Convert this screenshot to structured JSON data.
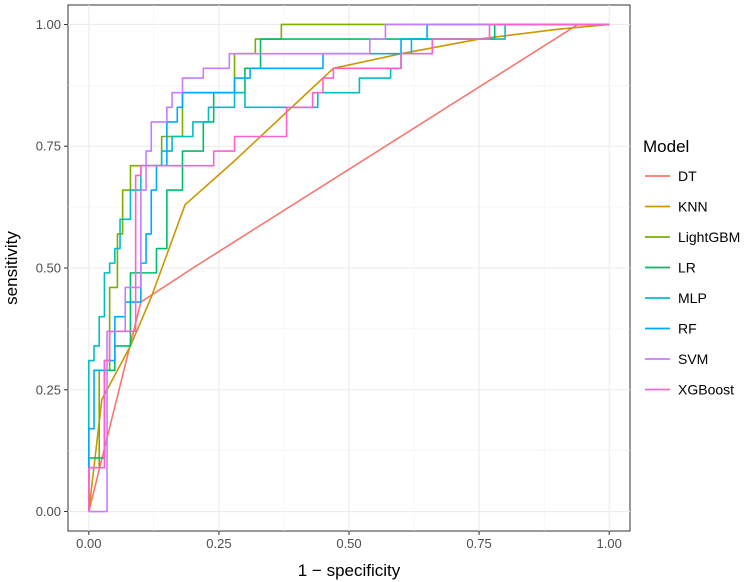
{
  "chart_data": {
    "type": "line",
    "xlabel": "1 − specificity",
    "ylabel": "sensitivity",
    "xlim": [
      -0.04,
      1.04
    ],
    "ylim": [
      -0.04,
      1.04
    ],
    "grid": true,
    "x_ticks": [
      "0.00",
      "0.25",
      "0.50",
      "0.75",
      "1.00"
    ],
    "y_ticks": [
      "0.00",
      "0.25",
      "0.50",
      "0.75",
      "1.00"
    ],
    "legend": {
      "title": "Model",
      "position": "right"
    },
    "series": [
      {
        "name": "DT",
        "color": "#F8766D",
        "points": [
          [
            0,
            0
          ],
          [
            0.1,
            0.43
          ],
          [
            0.2,
            0.5
          ],
          [
            0.94,
            1
          ],
          [
            1,
            1
          ]
        ]
      },
      {
        "name": "KNN",
        "color": "#CD9600",
        "points": [
          [
            0,
            0
          ],
          [
            0.025,
            0.23
          ],
          [
            0.05,
            0.28
          ],
          [
            0.08,
            0.34
          ],
          [
            0.12,
            0.44
          ],
          [
            0.185,
            0.63
          ],
          [
            0.28,
            0.72
          ],
          [
            0.37,
            0.81
          ],
          [
            0.47,
            0.91
          ],
          [
            0.6,
            0.94
          ],
          [
            0.75,
            0.97
          ],
          [
            0.9,
            0.99
          ],
          [
            1,
            1
          ]
        ]
      },
      {
        "name": "LightGBM",
        "color": "#7CAE00",
        "points": [
          [
            0,
            0
          ],
          [
            0,
            0.09
          ],
          [
            0.02,
            0.09
          ],
          [
            0.02,
            0.29
          ],
          [
            0.04,
            0.29
          ],
          [
            0.04,
            0.46
          ],
          [
            0.055,
            0.46
          ],
          [
            0.055,
            0.57
          ],
          [
            0.065,
            0.57
          ],
          [
            0.065,
            0.66
          ],
          [
            0.08,
            0.66
          ],
          [
            0.08,
            0.71
          ],
          [
            0.14,
            0.71
          ],
          [
            0.14,
            0.77
          ],
          [
            0.18,
            0.77
          ],
          [
            0.18,
            0.86
          ],
          [
            0.28,
            0.86
          ],
          [
            0.28,
            0.94
          ],
          [
            0.32,
            0.94
          ],
          [
            0.32,
            0.97
          ],
          [
            0.37,
            0.97
          ],
          [
            0.37,
            1
          ],
          [
            1,
            1
          ]
        ]
      },
      {
        "name": "LR",
        "color": "#00BE67",
        "points": [
          [
            0,
            0
          ],
          [
            0,
            0.11
          ],
          [
            0.03,
            0.11
          ],
          [
            0.03,
            0.29
          ],
          [
            0.05,
            0.29
          ],
          [
            0.05,
            0.34
          ],
          [
            0.08,
            0.34
          ],
          [
            0.08,
            0.49
          ],
          [
            0.13,
            0.49
          ],
          [
            0.13,
            0.54
          ],
          [
            0.15,
            0.54
          ],
          [
            0.15,
            0.66
          ],
          [
            0.18,
            0.66
          ],
          [
            0.18,
            0.74
          ],
          [
            0.22,
            0.74
          ],
          [
            0.22,
            0.8
          ],
          [
            0.24,
            0.8
          ],
          [
            0.24,
            0.86
          ],
          [
            0.3,
            0.86
          ],
          [
            0.3,
            0.91
          ],
          [
            0.33,
            0.91
          ],
          [
            0.33,
            0.97
          ],
          [
            0.78,
            0.97
          ],
          [
            0.78,
            1
          ],
          [
            1,
            1
          ]
        ]
      },
      {
        "name": "MLP",
        "color": "#00BFC4",
        "points": [
          [
            0,
            0
          ],
          [
            0,
            0.31
          ],
          [
            0.01,
            0.31
          ],
          [
            0.01,
            0.34
          ],
          [
            0.02,
            0.34
          ],
          [
            0.02,
            0.4
          ],
          [
            0.03,
            0.4
          ],
          [
            0.03,
            0.49
          ],
          [
            0.04,
            0.49
          ],
          [
            0.04,
            0.51
          ],
          [
            0.05,
            0.51
          ],
          [
            0.05,
            0.54
          ],
          [
            0.06,
            0.54
          ],
          [
            0.06,
            0.6
          ],
          [
            0.08,
            0.6
          ],
          [
            0.08,
            0.66
          ],
          [
            0.1,
            0.66
          ],
          [
            0.1,
            0.71
          ],
          [
            0.14,
            0.71
          ],
          [
            0.14,
            0.74
          ],
          [
            0.16,
            0.74
          ],
          [
            0.16,
            0.77
          ],
          [
            0.2,
            0.77
          ],
          [
            0.2,
            0.8
          ],
          [
            0.23,
            0.8
          ],
          [
            0.23,
            0.83
          ],
          [
            0.28,
            0.83
          ],
          [
            0.28,
            0.86
          ],
          [
            0.3,
            0.86
          ],
          [
            0.3,
            0.83
          ],
          [
            0.44,
            0.83
          ],
          [
            0.44,
            0.86
          ],
          [
            0.52,
            0.86
          ],
          [
            0.52,
            0.89
          ],
          [
            0.58,
            0.89
          ],
          [
            0.58,
            0.91
          ],
          [
            0.6,
            0.91
          ],
          [
            0.6,
            0.94
          ],
          [
            0.62,
            0.94
          ],
          [
            0.62,
            0.97
          ],
          [
            0.8,
            0.97
          ],
          [
            0.8,
            1
          ],
          [
            1,
            1
          ]
        ]
      },
      {
        "name": "RF",
        "color": "#00A9FF",
        "points": [
          [
            0,
            0
          ],
          [
            0,
            0.17
          ],
          [
            0.01,
            0.17
          ],
          [
            0.01,
            0.29
          ],
          [
            0.03,
            0.29
          ],
          [
            0.03,
            0.31
          ],
          [
            0.05,
            0.31
          ],
          [
            0.05,
            0.4
          ],
          [
            0.07,
            0.4
          ],
          [
            0.07,
            0.43
          ],
          [
            0.1,
            0.43
          ],
          [
            0.1,
            0.51
          ],
          [
            0.11,
            0.51
          ],
          [
            0.11,
            0.57
          ],
          [
            0.12,
            0.57
          ],
          [
            0.12,
            0.66
          ],
          [
            0.13,
            0.66
          ],
          [
            0.13,
            0.71
          ],
          [
            0.15,
            0.71
          ],
          [
            0.15,
            0.8
          ],
          [
            0.17,
            0.8
          ],
          [
            0.17,
            0.83
          ],
          [
            0.18,
            0.83
          ],
          [
            0.18,
            0.86
          ],
          [
            0.28,
            0.86
          ],
          [
            0.28,
            0.89
          ],
          [
            0.31,
            0.89
          ],
          [
            0.31,
            0.91
          ],
          [
            0.45,
            0.91
          ],
          [
            0.45,
            0.94
          ],
          [
            0.6,
            0.94
          ],
          [
            0.6,
            0.97
          ],
          [
            0.65,
            0.97
          ],
          [
            0.65,
            1
          ],
          [
            1,
            1
          ]
        ]
      },
      {
        "name": "SVM",
        "color": "#C77CFF",
        "points": [
          [
            0,
            0
          ],
          [
            0.035,
            0
          ],
          [
            0.035,
            0.37
          ],
          [
            0.07,
            0.37
          ],
          [
            0.07,
            0.46
          ],
          [
            0.1,
            0.46
          ],
          [
            0.1,
            0.66
          ],
          [
            0.11,
            0.66
          ],
          [
            0.11,
            0.74
          ],
          [
            0.12,
            0.74
          ],
          [
            0.12,
            0.8
          ],
          [
            0.15,
            0.8
          ],
          [
            0.15,
            0.83
          ],
          [
            0.16,
            0.83
          ],
          [
            0.16,
            0.86
          ],
          [
            0.18,
            0.86
          ],
          [
            0.18,
            0.89
          ],
          [
            0.22,
            0.89
          ],
          [
            0.22,
            0.91
          ],
          [
            0.27,
            0.91
          ],
          [
            0.27,
            0.94
          ],
          [
            0.54,
            0.94
          ],
          [
            0.54,
            0.97
          ],
          [
            0.57,
            0.97
          ],
          [
            0.57,
            1
          ],
          [
            1,
            1
          ]
        ]
      },
      {
        "name": "XGBoost",
        "color": "#FF61CC",
        "points": [
          [
            0,
            0
          ],
          [
            0,
            0.09
          ],
          [
            0.03,
            0.09
          ],
          [
            0.03,
            0.31
          ],
          [
            0.04,
            0.31
          ],
          [
            0.04,
            0.37
          ],
          [
            0.09,
            0.37
          ],
          [
            0.09,
            0.69
          ],
          [
            0.1,
            0.69
          ],
          [
            0.1,
            0.71
          ],
          [
            0.24,
            0.71
          ],
          [
            0.24,
            0.74
          ],
          [
            0.28,
            0.74
          ],
          [
            0.28,
            0.77
          ],
          [
            0.38,
            0.77
          ],
          [
            0.38,
            0.83
          ],
          [
            0.43,
            0.83
          ],
          [
            0.43,
            0.86
          ],
          [
            0.45,
            0.86
          ],
          [
            0.45,
            0.89
          ],
          [
            0.47,
            0.89
          ],
          [
            0.47,
            0.91
          ],
          [
            0.6,
            0.91
          ],
          [
            0.6,
            0.94
          ],
          [
            0.66,
            0.94
          ],
          [
            0.66,
            0.97
          ],
          [
            0.77,
            0.97
          ],
          [
            0.77,
            1
          ],
          [
            1,
            1
          ]
        ]
      }
    ]
  }
}
